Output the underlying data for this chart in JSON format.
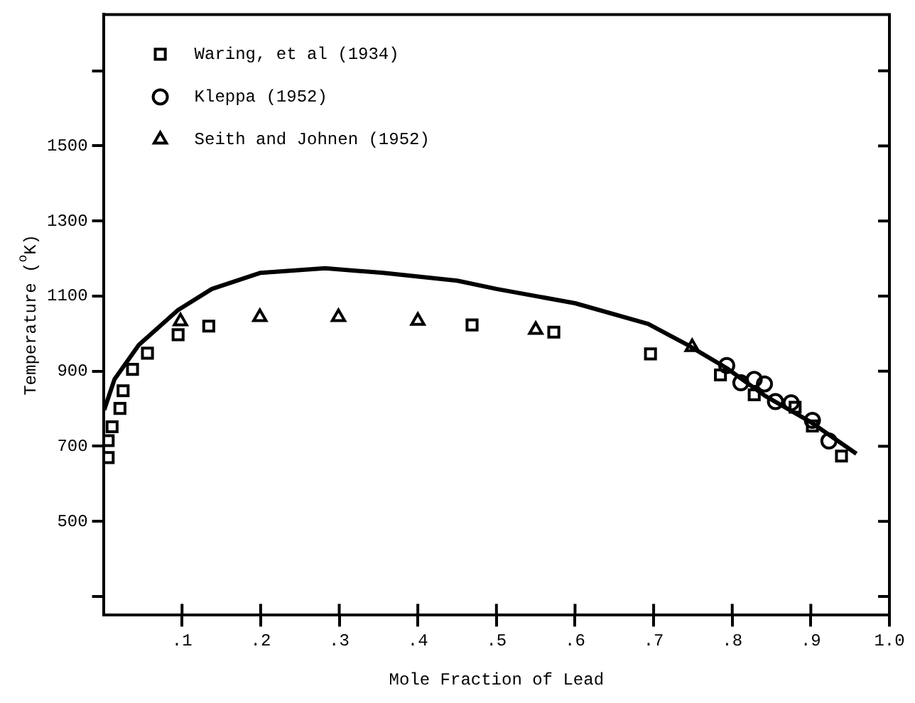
{
  "chart_data": {
    "type": "scatter",
    "xlabel": "Mole Fraction of Lead",
    "ylabel": "Temperature ($^{o}$K)",
    "xlim": [
      0,
      1
    ],
    "ylim": [
      250,
      1850
    ],
    "xticks": [
      {
        "value": 0.1,
        "label": ".1"
      },
      {
        "value": 0.2,
        "label": ".2"
      },
      {
        "value": 0.3,
        "label": ".3"
      },
      {
        "value": 0.4,
        "label": ".4"
      },
      {
        "value": 0.5,
        "label": ".5"
      },
      {
        "value": 0.6,
        "label": ".6"
      },
      {
        "value": 0.7,
        "label": ".7"
      },
      {
        "value": 0.8,
        "label": ".8"
      },
      {
        "value": 0.9,
        "label": ".9"
      },
      {
        "value": 1,
        "label": "1.0"
      }
    ],
    "yticks": [
      {
        "value": 300,
        "label": null
      },
      500,
      700,
      900,
      1100,
      1300,
      1500,
      {
        "value": 1700,
        "label": null
      }
    ],
    "grid": false,
    "legend": "top left",
    "series": [
      {
        "name": "Waring, et al (1934)",
        "color": "#000000",
        "marker": "square",
        "x": [
          0.006,
          0.006,
          0.011,
          0.021,
          0.025,
          0.037,
          0.056,
          0.095,
          0.134,
          0.469,
          0.573,
          0.696,
          0.785,
          0.828,
          0.88,
          0.902,
          0.939
        ],
        "values": [
          670,
          715,
          752,
          801,
          848,
          905,
          948,
          997,
          1020,
          1023,
          1004,
          946,
          890,
          837,
          804,
          754,
          674
        ]
      },
      {
        "name": "Kleppa (1952)",
        "color": "#000000",
        "marker": "circle",
        "x": [
          0.793,
          0.811,
          0.828,
          0.841,
          0.855,
          0.875,
          0.902,
          0.923
        ],
        "values": [
          915,
          869,
          878,
          866,
          819,
          816,
          769,
          714
        ]
      },
      {
        "name": "Seith and Johnen (1952)",
        "color": "#000000",
        "marker": "triangle",
        "x": [
          0.098,
          0.199,
          0.299,
          0.4,
          0.55,
          0.749
        ],
        "values": [
          1033,
          1044,
          1044,
          1034,
          1010,
          964
        ]
      },
      {
        "type": "line",
        "color": "#000000",
        "marker": "none",
        "x": [
          0.001,
          0.014,
          0.045,
          0.095,
          0.138,
          0.2,
          0.282,
          0.356,
          0.45,
          0.5,
          0.6,
          0.693,
          0.743,
          0.793,
          0.842,
          0.898,
          0.958
        ],
        "values": [
          797,
          878,
          970,
          1063,
          1119,
          1162,
          1174,
          1162,
          1141,
          1119,
          1081,
          1026,
          970,
          908,
          834,
          767,
          680
        ]
      }
    ]
  }
}
